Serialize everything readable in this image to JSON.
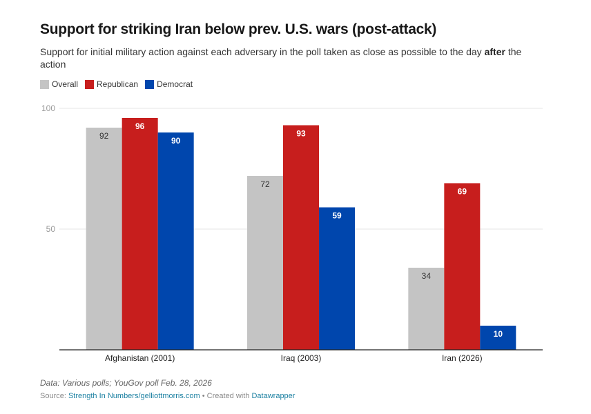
{
  "header": {
    "title": "Support for striking Iran below prev. U.S. wars (post-attack)",
    "subtitle_pre": "Support for initial military action against each adversary in the poll taken as close as possible to the day ",
    "subtitle_bold": "after",
    "subtitle_post": " the action"
  },
  "footer": {
    "notes": "Data: Various polls; YouGov poll Feb. 28, 2026",
    "source_label": "Source: ",
    "source_link": "Strength In Numbers/gelliottmorris.com",
    "separator": " • Created with ",
    "created_with": "Datawrapper"
  },
  "chart_data": {
    "type": "bar",
    "title": "Support for striking Iran below prev. U.S. wars (post-attack)",
    "subtitle": "Support for initial military action against each adversary in the poll taken as close as possible to the day after the action",
    "xlabel": "",
    "ylabel": "",
    "ylim": [
      0,
      100
    ],
    "yticks": [
      50,
      100
    ],
    "grid": true,
    "legend_position": "top-left",
    "categories": [
      "Afghanistan (2001)",
      "Iraq (2003)",
      "Iran (2026)"
    ],
    "series": [
      {
        "name": "Overall",
        "color": "#c4c4c4",
        "label_color": "#333333",
        "values": [
          92,
          72,
          34
        ]
      },
      {
        "name": "Republican",
        "color": "#c71e1d",
        "label_color": "#ffffff",
        "values": [
          96,
          93,
          69
        ]
      },
      {
        "name": "Democrat",
        "color": "#0046ad",
        "label_color": "#ffffff",
        "values": [
          90,
          59,
          10
        ]
      }
    ]
  }
}
